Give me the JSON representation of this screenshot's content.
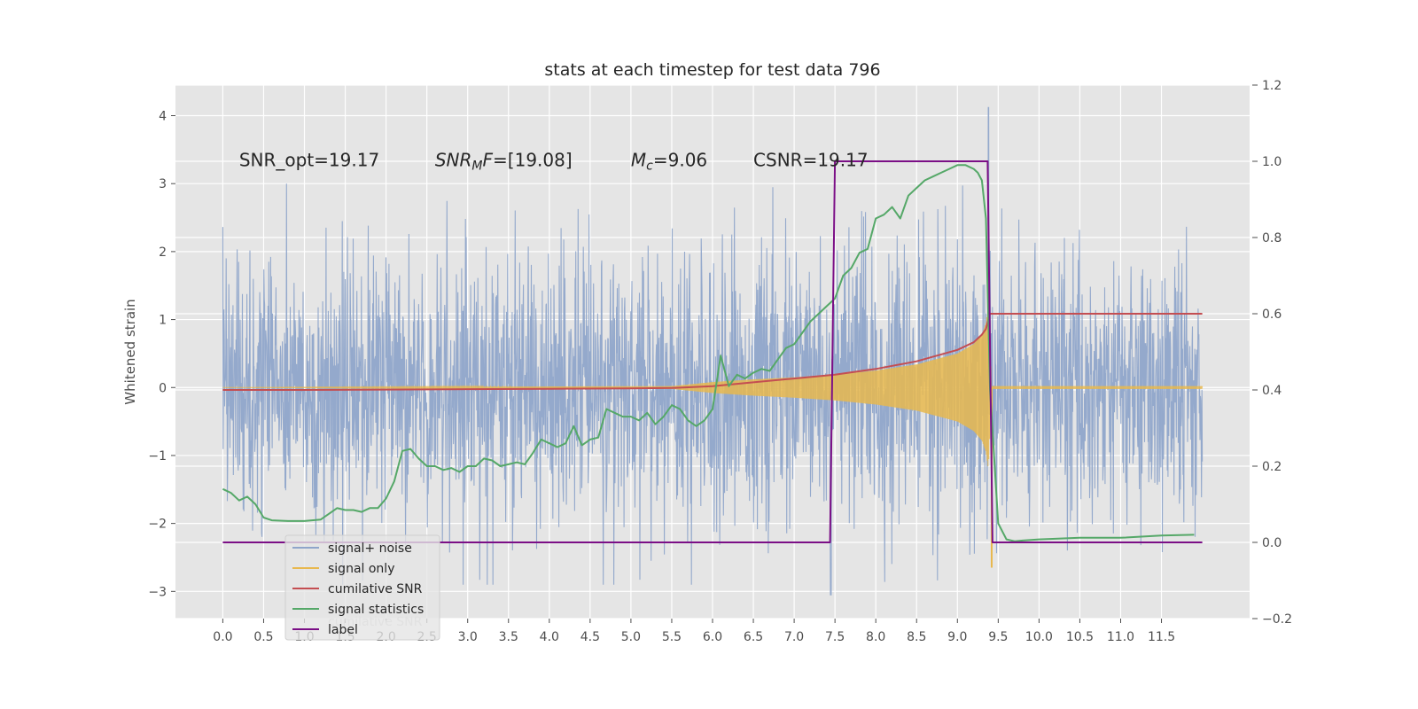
{
  "chart_data": {
    "type": "line",
    "title": "stats at each timestep for test data 796",
    "ylabel": "Whitened strain",
    "xlabel": "",
    "xlim": [
      -0.58,
      12.58
    ],
    "ylim": [
      -3.4,
      4.45
    ],
    "y2lim": [
      -0.2,
      1.2
    ],
    "grid": true,
    "legend_position": "lower-left",
    "x_ticks": [
      "0.0",
      "0.5",
      "1.0",
      "1.5",
      "2.0",
      "2.5",
      "3.0",
      "3.5",
      "4.0",
      "4.5",
      "5.0",
      "5.5",
      "6.0",
      "6.5",
      "7.0",
      "7.5",
      "8.0",
      "8.5",
      "9.0",
      "9.5",
      "10.0",
      "10.5",
      "11.0",
      "11.5"
    ],
    "y_ticks": [
      -3,
      -2,
      -1,
      0,
      1,
      2,
      3,
      4
    ],
    "y_tick_labels": [
      "−3",
      "−2",
      "−1",
      "0",
      "1",
      "2",
      "3",
      "4"
    ],
    "y2_ticks": [
      -0.2,
      0.0,
      0.2,
      0.4,
      0.6,
      0.8,
      1.0,
      1.2
    ],
    "y2_tick_labels": [
      "−0.2",
      "0.0",
      "0.2",
      "0.4",
      "0.6",
      "0.8",
      "1.0",
      "1.2"
    ],
    "annotations": [
      {
        "text": "SNR_opt=19.17",
        "x": 0.2,
        "y": 3.35
      },
      {
        "text": "SNR_MF=[19.08]",
        "x": 2.6,
        "y": 3.35
      },
      {
        "text": "M_c=9.06",
        "x": 5.0,
        "y": 3.35
      },
      {
        "text": "CSNR=19.17",
        "x": 6.5,
        "y": 3.35
      }
    ],
    "series": [
      {
        "name": "signal+ noise",
        "axis": "left",
        "color": "#8fa5ca",
        "description_values": {
          "x_start": 0.0,
          "x_end": 12.0,
          "typical_band": [
            -1.3,
            1.3
          ],
          "max": 4.12,
          "max_at": 9.38,
          "min": -3.05,
          "min_at": 7.45
        }
      },
      {
        "name": "signal only",
        "axis": "left",
        "color": "#e8b84e",
        "envelope": {
          "x": [
            0.0,
            5.5,
            6.0,
            6.5,
            7.0,
            7.5,
            8.0,
            8.5,
            9.0,
            9.2,
            9.3,
            9.35,
            9.38,
            9.42,
            12.0
          ],
          "amp": [
            0.0,
            0.02,
            0.08,
            0.12,
            0.15,
            0.19,
            0.25,
            0.34,
            0.5,
            0.64,
            0.78,
            0.95,
            1.2,
            0.02,
            0.02
          ]
        },
        "tail_min": -2.65
      },
      {
        "name": "cumilative SNR",
        "axis": "right",
        "color": "#c44e52",
        "x": [
          0.0,
          1.0,
          2.0,
          3.0,
          4.0,
          5.0,
          5.5,
          6.0,
          6.5,
          7.0,
          7.5,
          8.0,
          8.5,
          9.0,
          9.2,
          9.3,
          9.35,
          9.38,
          9.4,
          12.0
        ],
        "y": [
          0.4,
          0.4,
          0.401,
          0.402,
          0.403,
          0.404,
          0.405,
          0.41,
          0.42,
          0.43,
          0.44,
          0.455,
          0.475,
          0.505,
          0.525,
          0.545,
          0.56,
          0.585,
          0.6,
          0.6
        ]
      },
      {
        "name": "signal statistics",
        "axis": "right",
        "color": "#55a868",
        "x": [
          0.0,
          0.1,
          0.2,
          0.3,
          0.4,
          0.5,
          0.6,
          0.7,
          0.8,
          1.0,
          1.2,
          1.4,
          1.5,
          1.6,
          1.7,
          1.8,
          1.9,
          2.0,
          2.1,
          2.2,
          2.3,
          2.4,
          2.5,
          2.6,
          2.7,
          2.8,
          2.9,
          3.0,
          3.1,
          3.2,
          3.3,
          3.4,
          3.5,
          3.6,
          3.7,
          3.8,
          3.9,
          4.0,
          4.1,
          4.2,
          4.3,
          4.4,
          4.5,
          4.6,
          4.7,
          4.8,
          4.9,
          5.0,
          5.1,
          5.2,
          5.3,
          5.4,
          5.5,
          5.6,
          5.7,
          5.8,
          5.9,
          6.0,
          6.1,
          6.2,
          6.3,
          6.4,
          6.5,
          6.6,
          6.7,
          6.8,
          6.9,
          7.0,
          7.1,
          7.2,
          7.3,
          7.4,
          7.5,
          7.6,
          7.7,
          7.8,
          7.9,
          8.0,
          8.1,
          8.2,
          8.3,
          8.4,
          8.5,
          8.6,
          8.7,
          8.8,
          8.9,
          9.0,
          9.1,
          9.2,
          9.25,
          9.3,
          9.35,
          9.4,
          9.5,
          9.6,
          9.7,
          9.8,
          10.0,
          10.5,
          11.0,
          11.5,
          11.9
        ],
        "y": [
          0.14,
          0.13,
          0.11,
          0.12,
          0.1,
          0.065,
          0.058,
          0.057,
          0.056,
          0.056,
          0.06,
          0.09,
          0.085,
          0.085,
          0.08,
          0.09,
          0.09,
          0.115,
          0.16,
          0.24,
          0.245,
          0.22,
          0.2,
          0.2,
          0.19,
          0.195,
          0.185,
          0.2,
          0.2,
          0.22,
          0.215,
          0.2,
          0.205,
          0.21,
          0.205,
          0.235,
          0.27,
          0.26,
          0.25,
          0.26,
          0.305,
          0.255,
          0.27,
          0.275,
          0.35,
          0.34,
          0.33,
          0.33,
          0.32,
          0.34,
          0.31,
          0.33,
          0.36,
          0.35,
          0.32,
          0.305,
          0.32,
          0.35,
          0.49,
          0.41,
          0.44,
          0.43,
          0.445,
          0.455,
          0.45,
          0.48,
          0.51,
          0.52,
          0.55,
          0.58,
          0.6,
          0.62,
          0.64,
          0.7,
          0.72,
          0.76,
          0.77,
          0.85,
          0.86,
          0.88,
          0.85,
          0.91,
          0.93,
          0.95,
          0.96,
          0.97,
          0.98,
          0.99,
          0.99,
          0.98,
          0.97,
          0.95,
          0.85,
          0.4,
          0.05,
          0.008,
          0.003,
          0.005,
          0.008,
          0.012,
          0.012,
          0.018,
          0.02
        ]
      },
      {
        "name": "label",
        "axis": "right",
        "color": "#7b0f86",
        "x": [
          0.0,
          7.44,
          7.5,
          9.37,
          9.43,
          12.0
        ],
        "y": [
          0.0,
          0.0,
          1.0,
          1.0,
          0.0,
          0.0
        ]
      }
    ],
    "legend_entries": [
      "signal+ noise",
      "signal only",
      "cumilative SNR",
      "signal statistics",
      "label"
    ],
    "legend_shadow_text": "cumilative SNR"
  }
}
